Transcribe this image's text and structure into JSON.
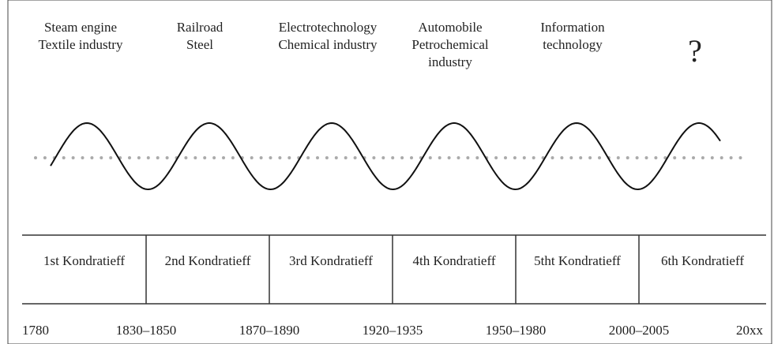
{
  "technologies": [
    [
      "Steam engine",
      "Textile industry"
    ],
    [
      "Railroad",
      "Steel"
    ],
    [
      "Electrotechnology",
      "Chemical industry"
    ],
    [
      "Automobile",
      "Petrochemical",
      "industry"
    ],
    [
      "Information",
      "technology"
    ],
    [
      "?"
    ]
  ],
  "kondratieffs": [
    "1st Kondratieff",
    "2nd Kondratieff",
    "3rd Kondratieff",
    "4th Kondratieff",
    "5tht Kondratieff",
    "6th Kondratieff"
  ],
  "dates": [
    "1780",
    "1830–1850",
    "1870–1890",
    "1920–1935",
    "1950–1980",
    "2000–2005",
    "20xx"
  ]
}
